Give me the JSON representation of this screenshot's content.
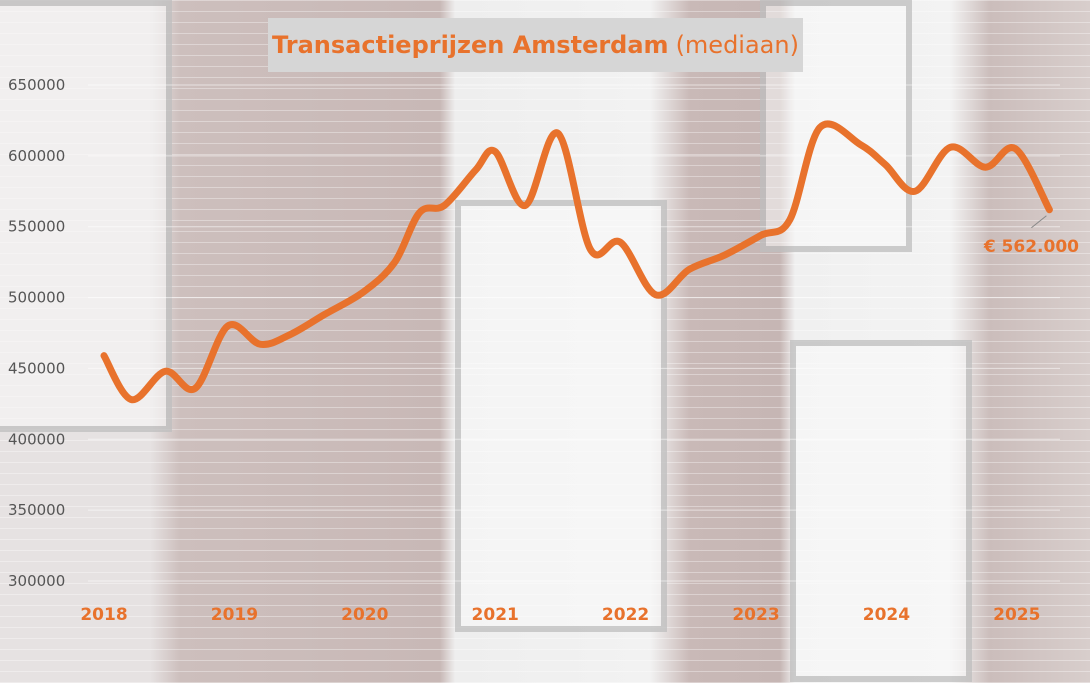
{
  "chart_data": {
    "type": "line",
    "title": "Transactieprijzen Amsterdam",
    "subtitle": "(mediaan)",
    "xlabel": "",
    "ylabel": "",
    "x_tick_labels": [
      "2018",
      "2019",
      "2020",
      "2021",
      "2022",
      "2023",
      "2024",
      "2025"
    ],
    "y_tick_labels": [
      "300000",
      "350000",
      "400000",
      "450000",
      "500000",
      "550000",
      "600000",
      "650000"
    ],
    "ylim": [
      300000,
      650000
    ],
    "grid": true,
    "line_color": "#e8722c",
    "series": [
      {
        "x": [
          2018.0,
          2018.21,
          2018.47,
          2018.7,
          2018.95,
          2019.2,
          2019.43,
          2019.69,
          2019.99,
          2020.23,
          2020.42,
          2020.61,
          2020.85,
          2021.0,
          2021.23,
          2021.48,
          2021.73,
          2021.96,
          2022.23,
          2022.49,
          2022.76,
          2023.04,
          2023.26,
          2023.49,
          2023.8,
          2023.99,
          2024.22,
          2024.49,
          2024.76,
          2024.99,
          2025.25
        ],
        "values": [
          459000,
          428000,
          448000,
          436000,
          480000,
          467000,
          474000,
          488000,
          504000,
          525000,
          560000,
          565000,
          590000,
          603000,
          565000,
          616000,
          534000,
          539000,
          502000,
          520000,
          530000,
          544000,
          555000,
          620000,
          608000,
          594000,
          575000,
          606000,
          592000,
          605000,
          562000
        ]
      }
    ],
    "annotation": "€ 562.000"
  }
}
